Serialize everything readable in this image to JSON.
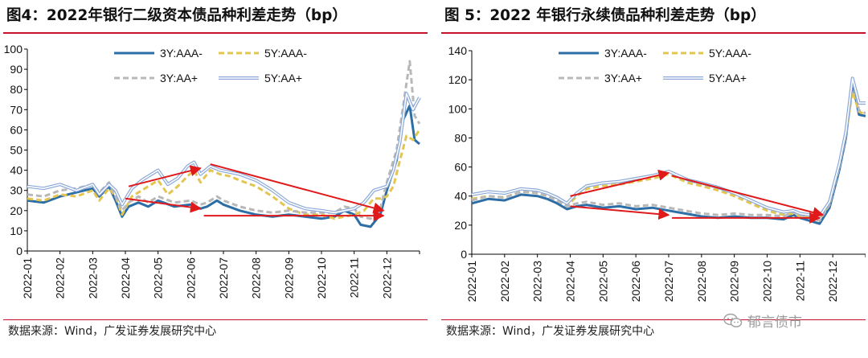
{
  "figures": {
    "left": {
      "title": "图4：2022年银行二级资本债品种利差走势（bp）",
      "source": "数据来源：Wind，广发证券发展研究中心"
    },
    "right": {
      "title": "图 5：2022 年银行永续债品种利差走势（bp）",
      "source": "数据来源：Wind，广发证券发展研究中心"
    }
  },
  "watermark": {
    "text": "郁言债市",
    "icon": "wechat-icon"
  },
  "colors": {
    "rule": "#c7122b",
    "arrow": "#e0191b",
    "s1": "#2d6ea6",
    "s2": "#e3c552",
    "s3": "#b8b8b8",
    "s4": "#8aa8d8"
  },
  "chart_data": [
    {
      "type": "line",
      "title": "2022年银行二级资本债品种利差走势（bp）",
      "xlabel": "",
      "ylabel": "",
      "ylim": [
        0,
        100
      ],
      "yticks": [
        0,
        10,
        20,
        30,
        40,
        50,
        60,
        70,
        80,
        90,
        100
      ],
      "categories": [
        "2022-01",
        "2022-02",
        "2022-03",
        "2022-04",
        "2022-05",
        "2022-06",
        "2022-07",
        "2022-08",
        "2022-09",
        "2022-10",
        "2022-11",
        "2022-12"
      ],
      "xmax": 12,
      "legend": [
        "3Y:AAA-",
        "5Y:AAA-",
        "3Y:AA+",
        "5Y:AA+"
      ],
      "legend_position": "top",
      "grid": false,
      "series": [
        {
          "name": "3Y:AAA-",
          "style": "solid",
          "color": "#2d6ea6",
          "x": [
            0,
            0.5,
            1,
            1.5,
            2,
            2.2,
            2.5,
            2.7,
            2.9,
            3.1,
            3.4,
            3.7,
            4,
            4.5,
            5,
            5.3,
            5.5,
            5.8,
            6,
            6.5,
            7,
            7.5,
            8,
            8.5,
            9,
            9.4,
            9.7,
            10,
            10.2,
            10.5,
            10.8,
            11,
            11.3,
            11.5,
            11.7,
            11.85,
            12
          ],
          "values": [
            25,
            24,
            27,
            29,
            31,
            27,
            32,
            25,
            17,
            22,
            24,
            22,
            25,
            22,
            23,
            21,
            22,
            25,
            23,
            20,
            18,
            17,
            18,
            17,
            16,
            17,
            20,
            18,
            13,
            12,
            18,
            30,
            45,
            65,
            72,
            55,
            53
          ]
        },
        {
          "name": "5Y:AAA-",
          "style": "dashed",
          "color": "#e3c552",
          "x": [
            0,
            0.5,
            1,
            1.5,
            2,
            2.2,
            2.5,
            2.7,
            2.9,
            3.2,
            3.5,
            3.8,
            4,
            4.3,
            4.6,
            4.9,
            5.1,
            5.3,
            5.6,
            5.9,
            6.2,
            6.5,
            7,
            7.5,
            8,
            8.5,
            9,
            9.4,
            9.7,
            10,
            10.3,
            10.6,
            10.8,
            11,
            11.2,
            11.4,
            11.6,
            11.8,
            12
          ],
          "values": [
            26,
            25,
            28,
            27,
            30,
            25,
            31,
            27,
            18,
            27,
            30,
            33,
            35,
            28,
            32,
            37,
            40,
            34,
            40,
            38,
            37,
            35,
            32,
            27,
            21,
            18,
            18,
            16,
            17,
            18,
            20,
            26,
            26,
            27,
            32,
            45,
            57,
            55,
            60
          ]
        },
        {
          "name": "3Y:AA+",
          "style": "dashed",
          "color": "#b8b8b8",
          "x": [
            0,
            0.5,
            1,
            1.5,
            2,
            2.2,
            2.5,
            2.7,
            2.9,
            3.1,
            3.4,
            3.7,
            4,
            4.5,
            5,
            5.3,
            5.5,
            5.8,
            6,
            6.5,
            7,
            7.5,
            8,
            8.5,
            9,
            9.4,
            9.7,
            10,
            10.2,
            10.5,
            10.8,
            11,
            11.3,
            11.5,
            11.7,
            11.85,
            12
          ],
          "values": [
            28,
            27,
            30,
            31,
            33,
            29,
            34,
            27,
            20,
            24,
            27,
            24,
            27,
            24,
            25,
            23,
            24,
            27,
            25,
            22,
            20,
            19,
            20,
            19,
            19,
            19,
            22,
            21,
            17,
            16,
            21,
            34,
            50,
            72,
            94,
            67,
            63
          ]
        },
        {
          "name": "5Y:AA+",
          "style": "double",
          "color": "#8aa8d8",
          "x": [
            0,
            0.5,
            1,
            1.5,
            2,
            2.2,
            2.5,
            2.7,
            2.9,
            3.2,
            3.5,
            3.8,
            4,
            4.3,
            4.6,
            4.9,
            5.1,
            5.3,
            5.6,
            5.9,
            6.2,
            6.5,
            7,
            7.5,
            8,
            8.5,
            9,
            9.4,
            9.7,
            10,
            10.3,
            10.6,
            10.8,
            11,
            11.2,
            11.4,
            11.6,
            11.8,
            12
          ],
          "values": [
            32,
            31,
            33,
            30,
            33,
            28,
            33,
            30,
            23,
            31,
            35,
            38,
            40,
            33,
            36,
            42,
            44,
            38,
            42,
            40,
            39,
            38,
            35,
            30,
            24,
            21,
            20,
            19,
            20,
            21,
            24,
            30,
            31,
            32,
            40,
            54,
            78,
            70,
            76
          ]
        }
      ],
      "annotations": [
        {
          "type": "arrow",
          "from": [
            3.1,
            32
          ],
          "to": [
            5.3,
            41
          ]
        },
        {
          "type": "arrow",
          "from": [
            5.6,
            43
          ],
          "to": [
            10.9,
            20
          ]
        },
        {
          "type": "arrow",
          "from": [
            3.0,
            26
          ],
          "to": [
            5.3,
            21
          ]
        },
        {
          "type": "arrow",
          "from": [
            5.4,
            17.5
          ],
          "to": [
            10.9,
            17.5
          ]
        }
      ]
    },
    {
      "type": "line",
      "title": "2022 年银行永续债品种利差走势（bp）",
      "xlabel": "",
      "ylabel": "",
      "ylim": [
        0,
        140
      ],
      "yticks": [
        0,
        20,
        40,
        60,
        80,
        100,
        120,
        140
      ],
      "categories": [
        "2022-01",
        "2022-02",
        "2022-03",
        "2022-04",
        "2022-05",
        "2022-06",
        "2022-07",
        "2022-08",
        "2022-09",
        "2022-10",
        "2022-11",
        "2022-12"
      ],
      "xmax": 12,
      "legend": [
        "3Y:AAA-",
        "5Y:AAA-",
        "3Y:AA+",
        "5Y:AA+"
      ],
      "legend_position": "top",
      "grid": false,
      "series": [
        {
          "name": "3Y:AAA-",
          "style": "solid",
          "color": "#2d6ea6",
          "x": [
            0,
            0.5,
            1,
            1.5,
            2,
            2.3,
            2.6,
            2.9,
            3.2,
            3.5,
            4,
            4.5,
            5,
            5.5,
            6,
            6.5,
            7,
            7.5,
            8,
            8.5,
            9,
            9.5,
            9.8,
            10,
            10.3,
            10.6,
            10.9,
            11.2,
            11.4,
            11.6,
            11.8,
            12
          ],
          "values": [
            35,
            38,
            37,
            41,
            40,
            38,
            35,
            31,
            33,
            34,
            32,
            33,
            31,
            32,
            30,
            28,
            26,
            25,
            26,
            25,
            25,
            24,
            27,
            25,
            23,
            21,
            32,
            58,
            80,
            118,
            96,
            95
          ]
        },
        {
          "name": "5Y:AAA-",
          "style": "dashed",
          "color": "#e3c552",
          "x": [
            0,
            0.5,
            1,
            1.5,
            2,
            2.3,
            2.6,
            2.9,
            3.2,
            3.5,
            4,
            4.5,
            5,
            5.5,
            6,
            6.3,
            6.6,
            7,
            7.5,
            8,
            8.5,
            9,
            9.5,
            9.8,
            10,
            10.3,
            10.6,
            10.9,
            11.2,
            11.4,
            11.6,
            11.8,
            12
          ],
          "values": [
            38,
            40,
            39,
            43,
            42,
            40,
            37,
            33,
            40,
            45,
            47,
            48,
            50,
            52,
            55,
            52,
            49,
            47,
            44,
            40,
            35,
            30,
            27,
            28,
            26,
            25,
            24,
            34,
            60,
            82,
            112,
            98,
            96
          ]
        },
        {
          "name": "3Y:AA+",
          "style": "dashed",
          "color": "#b8b8b8",
          "x": [
            0,
            0.5,
            1,
            1.5,
            2,
            2.3,
            2.6,
            2.9,
            3.2,
            3.5,
            4,
            4.5,
            5,
            5.5,
            6,
            6.5,
            7,
            7.5,
            8,
            8.5,
            9,
            9.5,
            9.8,
            10,
            10.3,
            10.6,
            10.9,
            11.2,
            11.4,
            11.6,
            11.8,
            12
          ],
          "values": [
            37,
            40,
            39,
            43,
            42,
            40,
            37,
            33,
            35,
            36,
            34,
            35,
            33,
            34,
            32,
            30,
            28,
            27,
            28,
            27,
            27,
            26,
            29,
            27,
            25,
            23,
            34,
            60,
            82,
            120,
            99,
            97
          ]
        },
        {
          "name": "5Y:AA+",
          "style": "double",
          "color": "#8aa8d8",
          "x": [
            0,
            0.5,
            1,
            1.5,
            2,
            2.3,
            2.6,
            2.9,
            3.2,
            3.5,
            4,
            4.5,
            5,
            5.5,
            6,
            6.3,
            6.6,
            7,
            7.5,
            8,
            8.5,
            9,
            9.5,
            9.8,
            10,
            10.3,
            10.6,
            10.9,
            11.2,
            11.4,
            11.6,
            11.8,
            12
          ],
          "values": [
            41,
            43,
            42,
            45,
            44,
            42,
            39,
            35,
            42,
            47,
            49,
            50,
            52,
            54,
            57,
            54,
            51,
            49,
            46,
            42,
            37,
            32,
            29,
            30,
            28,
            27,
            26,
            36,
            62,
            84,
            121,
            104,
            104
          ]
        }
      ],
      "annotations": [
        {
          "type": "arrow",
          "from": [
            3.0,
            40
          ],
          "to": [
            6.0,
            56
          ]
        },
        {
          "type": "arrow",
          "from": [
            6.1,
            54
          ],
          "to": [
            10.7,
            27
          ]
        },
        {
          "type": "arrow",
          "from": [
            3.0,
            33
          ],
          "to": [
            6.0,
            27
          ]
        },
        {
          "type": "arrow",
          "from": [
            6.1,
            25
          ],
          "to": [
            10.6,
            25
          ]
        }
      ]
    }
  ]
}
